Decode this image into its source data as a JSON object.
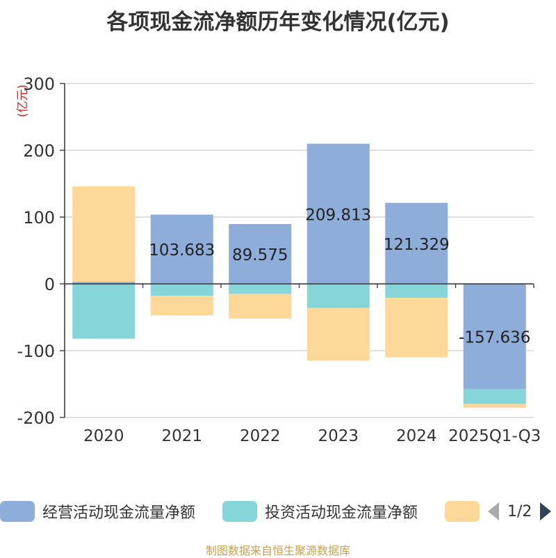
{
  "title": "各项现金流净额历年变化情况(亿元)",
  "source": "制图数据来自恒生聚源数据库",
  "pager": {
    "text": "1/2"
  },
  "chart_data": {
    "type": "bar",
    "stacked": true,
    "title": "各项现金流净额历年变化情况(亿元)",
    "ylabel": "(亿元)",
    "ylim": [
      -200,
      300
    ],
    "yticks": [
      -200,
      -100,
      0,
      100,
      200,
      300
    ],
    "categories": [
      "2020",
      "2021",
      "2022",
      "2023",
      "2024",
      "2025Q1-Q3"
    ],
    "grid": true,
    "legend_position": "bottom",
    "series": [
      {
        "name": "经营活动现金流量净额",
        "color": "#8eadd9",
        "values": [
          3,
          103.683,
          89.575,
          209.813,
          121.329,
          -157.636
        ],
        "labels": [
          "",
          "103.683",
          "89.575",
          "209.813",
          "121.329",
          "-157.636"
        ]
      },
      {
        "name": "投资活动现金流量净额",
        "color": "#86d5d8",
        "values": [
          -82,
          -18,
          -15,
          -36,
          -21,
          -22
        ]
      },
      {
        "name": "",
        "color": "#fed898",
        "values": [
          143,
          -29,
          -37,
          -79,
          -89,
          -6
        ]
      }
    ]
  }
}
